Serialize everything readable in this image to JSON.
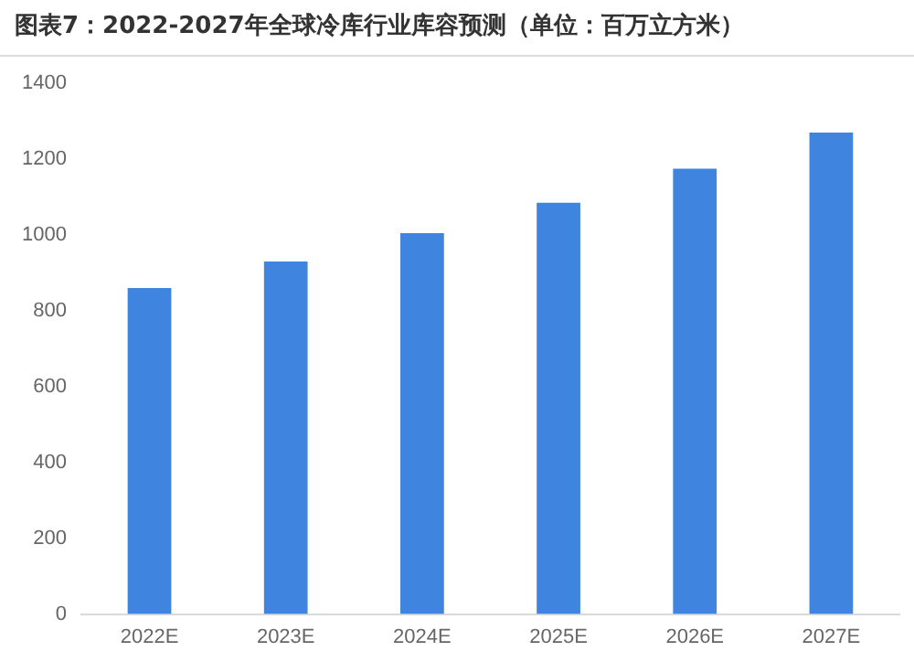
{
  "chart_data": {
    "type": "bar",
    "title": "图表7：2022-2027年全球冷库行业库容预测（单位：百万立方米）",
    "categories": [
      "2022E",
      "2023E",
      "2024E",
      "2025E",
      "2026E",
      "2027E"
    ],
    "series": [
      {
        "color": "#3f85e0",
        "values": [
          860,
          930,
          1005,
          1085,
          1175,
          1270
        ]
      }
    ],
    "ylim": [
      0,
      1400
    ],
    "yticks": [
      0,
      200,
      400,
      600,
      800,
      1000,
      1200,
      1400
    ],
    "grid": false,
    "legend": false
  }
}
